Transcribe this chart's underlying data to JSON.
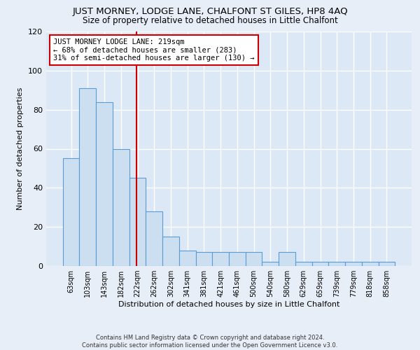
{
  "title": "JUST MORNEY, LODGE LANE, CHALFONT ST GILES, HP8 4AQ",
  "subtitle": "Size of property relative to detached houses in Little Chalfont",
  "xlabel": "Distribution of detached houses by size in Little Chalfont",
  "ylabel": "Number of detached properties",
  "bar_labels": [
    "63sqm",
    "103sqm",
    "143sqm",
    "182sqm",
    "222sqm",
    "262sqm",
    "302sqm",
    "341sqm",
    "381sqm",
    "421sqm",
    "461sqm",
    "500sqm",
    "540sqm",
    "580sqm",
    "629sqm",
    "659sqm",
    "739sqm",
    "779sqm",
    "818sqm",
    "858sqm"
  ],
  "bar_values": [
    55,
    91,
    84,
    60,
    45,
    28,
    15,
    8,
    7,
    7,
    7,
    7,
    2,
    7,
    2,
    2,
    2,
    2,
    2,
    2
  ],
  "bar_color": "#ccdff0",
  "bar_edge_color": "#5b9bd5",
  "bar_width": 1.0,
  "red_line_color": "#cc0000",
  "annotation_text": "JUST MORNEY LODGE LANE: 219sqm\n← 68% of detached houses are smaller (283)\n31% of semi-detached houses are larger (130) →",
  "annotation_box_edge": "#cc0000",
  "ylim": [
    0,
    120
  ],
  "yticks": [
    0,
    20,
    40,
    60,
    80,
    100,
    120
  ],
  "background_color": "#dce8f5",
  "fig_background_color": "#e8eef8",
  "footer": "Contains HM Land Registry data © Crown copyright and database right 2024.\nContains public sector information licensed under the Open Government Licence v3.0.",
  "title_fontsize": 9.5,
  "subtitle_fontsize": 8.5,
  "xlabel_fontsize": 8,
  "ylabel_fontsize": 8
}
